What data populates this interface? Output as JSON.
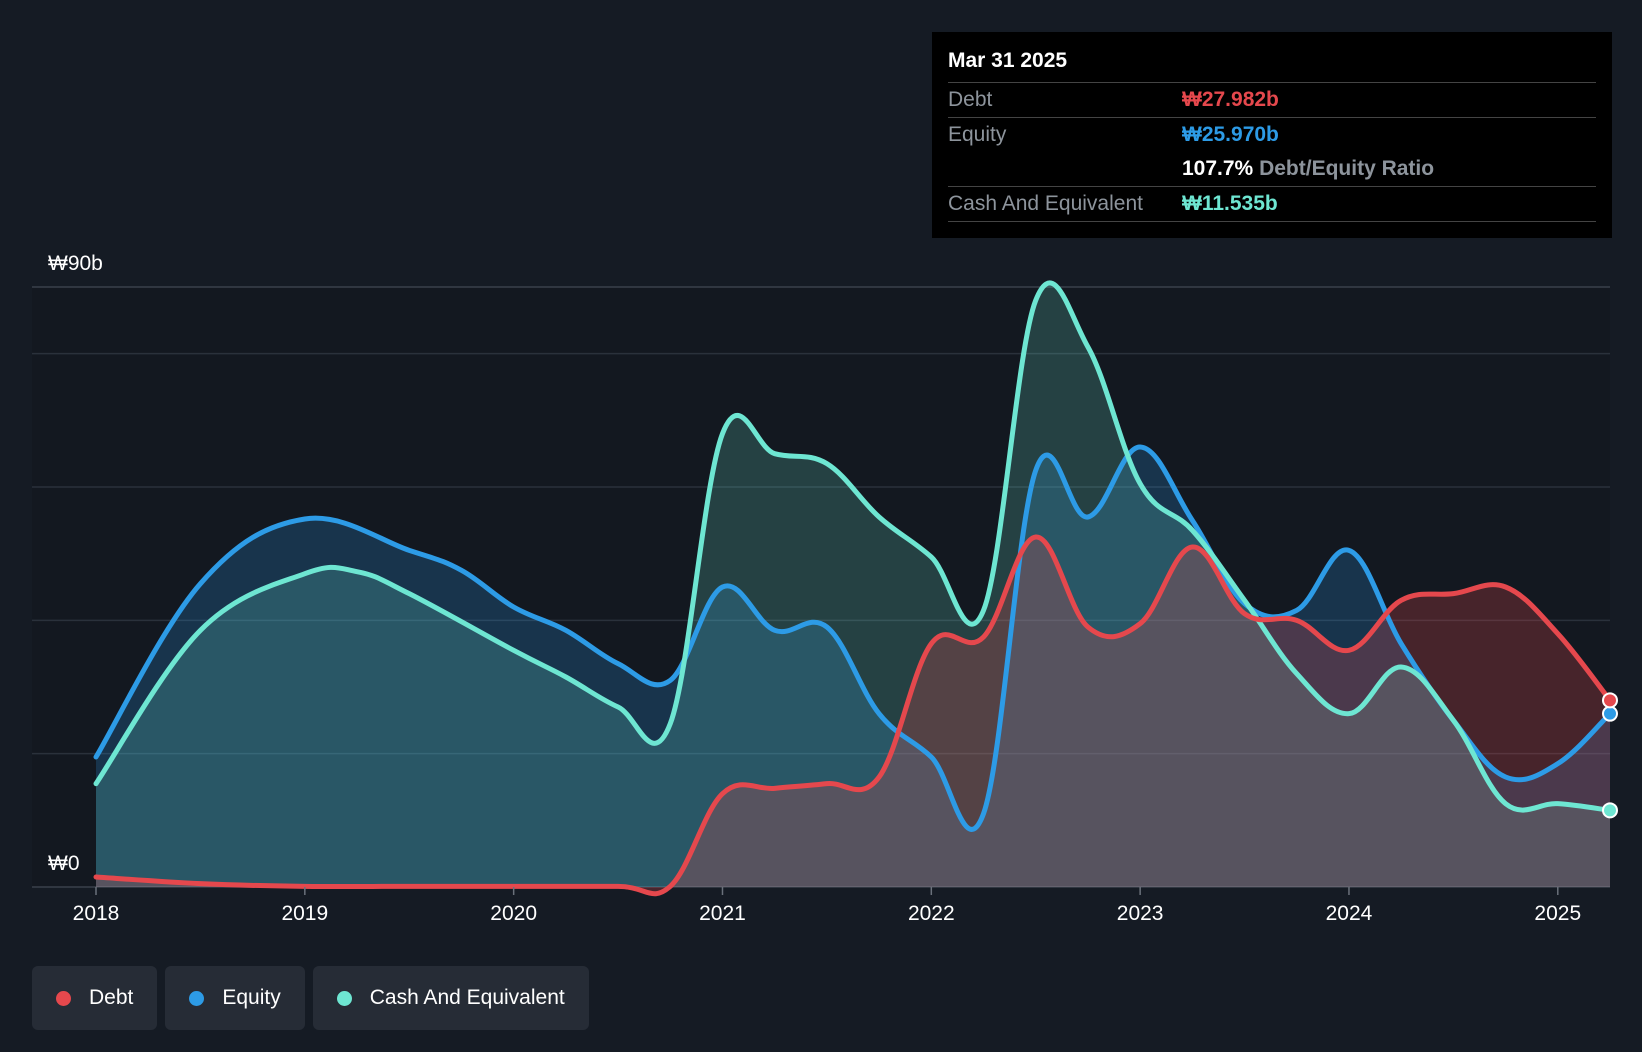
{
  "tooltip": {
    "date": "Mar 31 2025",
    "debt_label": "Debt",
    "debt_value": "₩27.982b",
    "equity_label": "Equity",
    "equity_value": "₩25.970b",
    "ratio_value": "107.7%",
    "ratio_label": "Debt/Equity Ratio",
    "cash_label": "Cash And Equivalent",
    "cash_value": "₩11.535b"
  },
  "legend": [
    {
      "label": "Debt",
      "color": "#e5484d"
    },
    {
      "label": "Equity",
      "color": "#2d9be6"
    },
    {
      "label": "Cash And Equivalent",
      "color": "#6ee6d2"
    }
  ],
  "chart_data": {
    "type": "area",
    "title": "",
    "xlabel": "",
    "ylabel": "",
    "y_top_label": "₩90b",
    "y_bottom_label": "₩0",
    "ylim": [
      0,
      90
    ],
    "xlim": [
      2018,
      2025.25
    ],
    "x_ticks": [
      "2018",
      "2019",
      "2020",
      "2021",
      "2022",
      "2023",
      "2024",
      "2025"
    ],
    "colors": {
      "Debt": "#e5484d",
      "Equity": "#2d9be6",
      "Cash And Equivalent": "#6ee6d2"
    },
    "series": [
      {
        "name": "Equity",
        "points": [
          [
            2018.0,
            19.5
          ],
          [
            2018.5,
            45.5
          ],
          [
            2019.0,
            55.2
          ],
          [
            2019.5,
            50.5
          ],
          [
            2019.75,
            47.5
          ],
          [
            2020.0,
            42
          ],
          [
            2020.25,
            38.5
          ],
          [
            2020.5,
            33.5
          ],
          [
            2020.75,
            31
          ],
          [
            2021.0,
            45
          ],
          [
            2021.25,
            38.5
          ],
          [
            2021.5,
            39
          ],
          [
            2021.75,
            26
          ],
          [
            2022.0,
            19.5
          ],
          [
            2022.25,
            11
          ],
          [
            2022.5,
            62.5
          ],
          [
            2022.75,
            55.5
          ],
          [
            2023.0,
            66
          ],
          [
            2023.25,
            55
          ],
          [
            2023.5,
            42.5
          ],
          [
            2023.75,
            41.5
          ],
          [
            2024.0,
            50.5
          ],
          [
            2024.25,
            36.5
          ],
          [
            2024.5,
            25
          ],
          [
            2024.75,
            16.5
          ],
          [
            2025.0,
            18.5
          ],
          [
            2025.25,
            26
          ]
        ]
      },
      {
        "name": "Cash And Equivalent",
        "points": [
          [
            2018.0,
            15.5
          ],
          [
            2018.5,
            38.5
          ],
          [
            2019.0,
            47
          ],
          [
            2019.25,
            47.3
          ],
          [
            2019.5,
            44
          ],
          [
            2020.0,
            35.5
          ],
          [
            2020.25,
            31.5
          ],
          [
            2020.5,
            27
          ],
          [
            2020.75,
            24.5
          ],
          [
            2021.0,
            68
          ],
          [
            2021.25,
            65
          ],
          [
            2021.5,
            63.5
          ],
          [
            2021.75,
            55.5
          ],
          [
            2022.0,
            49.5
          ],
          [
            2022.25,
            41.5
          ],
          [
            2022.5,
            88
          ],
          [
            2022.75,
            81
          ],
          [
            2023.0,
            60.5
          ],
          [
            2023.25,
            53.5
          ],
          [
            2023.5,
            43
          ],
          [
            2023.75,
            32
          ],
          [
            2024.0,
            26
          ],
          [
            2024.25,
            33
          ],
          [
            2024.5,
            25
          ],
          [
            2024.75,
            12.5
          ],
          [
            2025.0,
            12.5
          ],
          [
            2025.25,
            11.5
          ]
        ]
      },
      {
        "name": "Debt",
        "points": [
          [
            2018.0,
            1.5
          ],
          [
            2018.5,
            0.5
          ],
          [
            2019.0,
            0.1
          ],
          [
            2019.5,
            0.1
          ],
          [
            2020.0,
            0.1
          ],
          [
            2020.5,
            0.1
          ],
          [
            2020.75,
            0.1
          ],
          [
            2021.0,
            14
          ],
          [
            2021.25,
            14.8
          ],
          [
            2021.5,
            15.5
          ],
          [
            2021.75,
            16.5
          ],
          [
            2022.0,
            36.5
          ],
          [
            2022.25,
            37.5
          ],
          [
            2022.5,
            52.5
          ],
          [
            2022.75,
            39
          ],
          [
            2023.0,
            39.5
          ],
          [
            2023.25,
            51
          ],
          [
            2023.5,
            41
          ],
          [
            2023.75,
            40
          ],
          [
            2024.0,
            35.5
          ],
          [
            2024.25,
            43
          ],
          [
            2024.5,
            44
          ],
          [
            2024.75,
            45
          ],
          [
            2025.0,
            38
          ],
          [
            2025.25,
            28
          ]
        ]
      }
    ]
  }
}
